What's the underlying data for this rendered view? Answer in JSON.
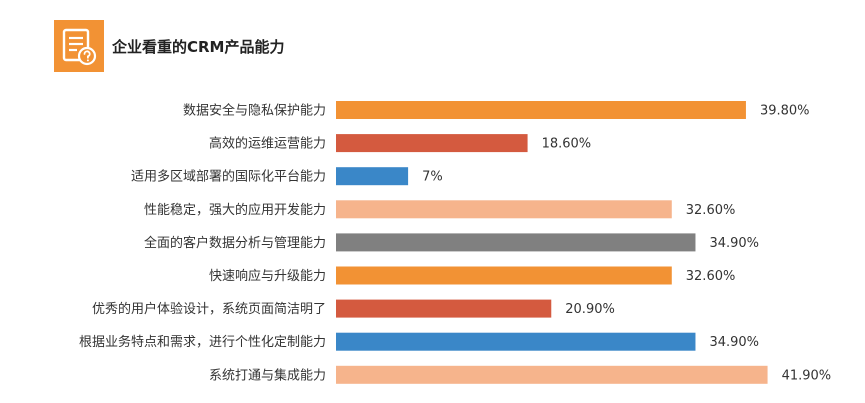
{
  "header": {
    "icon": "document-question-icon",
    "icon_color": "#f29234"
  },
  "chart_data": {
    "type": "bar",
    "orientation": "horizontal",
    "title": "企业看重的CRM产品能力",
    "categories": [
      "数据安全与隐私保护能力",
      "高效的运维运营能力",
      "适用多区域部署的国际化平台能力",
      "性能稳定，强大的应用开发能力",
      "全面的客户数据分析与管理能力",
      "快速响应与升级能力",
      "优秀的用户体验设计，系统页面简洁明了",
      "根据业务特点和需求，进行个性化定制能力",
      "系统打通与集成能力"
    ],
    "values": [
      39.8,
      18.6,
      7,
      32.6,
      34.9,
      32.6,
      20.9,
      34.9,
      41.9
    ],
    "value_labels": [
      "39.80%",
      "18.60%",
      "7%",
      "32.60%",
      "34.90%",
      "32.60%",
      "20.90%",
      "34.90%",
      "41.90%"
    ],
    "colors": [
      "#f29234",
      "#d45a3f",
      "#3a87c8",
      "#f6b48c",
      "#808080",
      "#f29234",
      "#d45a3f",
      "#3a87c8",
      "#f6b48c"
    ],
    "unit": "%",
    "grid": false,
    "legend": "none"
  }
}
